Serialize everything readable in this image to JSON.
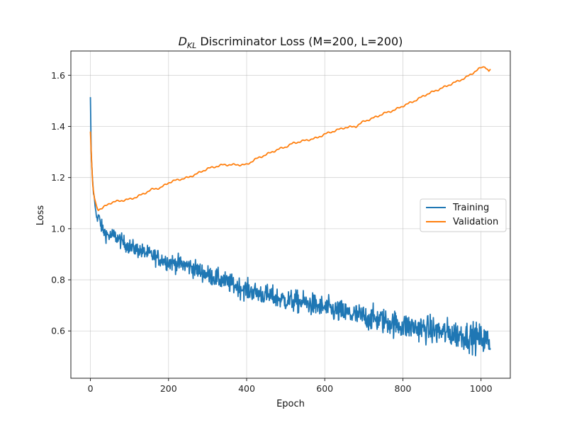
{
  "chart_data": {
    "type": "line",
    "title_prefix": "D",
    "title_subscript": "KL",
    "title_suffix": " Discriminator Loss (M=200, L=200)",
    "xlabel": "Epoch",
    "ylabel": "Loss",
    "xlim": [
      -50,
      1075
    ],
    "ylim": [
      0.415,
      1.695
    ],
    "x_ticks": [
      0,
      200,
      400,
      600,
      800,
      1000
    ],
    "y_ticks": [
      0.6,
      0.8,
      1.0,
      1.2,
      1.4,
      1.6
    ],
    "y_tick_labels": [
      "0.6",
      "0.8",
      "1.0",
      "1.2",
      "1.4",
      "1.6"
    ],
    "grid": true,
    "legend_position": "center-right",
    "series": [
      {
        "name": "Training",
        "color": "#1f77b4",
        "points": [
          [
            0,
            1.51
          ],
          [
            2,
            1.3
          ],
          [
            4,
            1.23
          ],
          [
            6,
            1.18
          ],
          [
            8,
            1.14
          ],
          [
            10,
            1.12
          ],
          [
            12,
            1.09
          ],
          [
            15,
            1.06
          ],
          [
            18,
            1.03
          ],
          [
            20,
            1.05
          ],
          [
            30,
            1.0
          ],
          [
            40,
            0.98
          ],
          [
            50,
            0.97
          ],
          [
            60,
            0.975
          ],
          [
            80,
            0.95
          ],
          [
            100,
            0.93
          ],
          [
            150,
            0.9
          ],
          [
            200,
            0.87
          ],
          [
            250,
            0.855
          ],
          [
            300,
            0.82
          ],
          [
            350,
            0.79
          ],
          [
            400,
            0.76
          ],
          [
            450,
            0.74
          ],
          [
            500,
            0.72
          ],
          [
            550,
            0.71
          ],
          [
            600,
            0.69
          ],
          [
            650,
            0.67
          ],
          [
            700,
            0.655
          ],
          [
            750,
            0.64
          ],
          [
            800,
            0.62
          ],
          [
            850,
            0.61
          ],
          [
            900,
            0.595
          ],
          [
            950,
            0.585
          ],
          [
            1000,
            0.57
          ],
          [
            1025,
            0.555
          ]
        ]
      },
      {
        "name": "Validation",
        "color": "#ff7f0e",
        "points": [
          [
            0,
            1.38
          ],
          [
            3,
            1.26
          ],
          [
            6,
            1.17
          ],
          [
            10,
            1.12
          ],
          [
            15,
            1.09
          ],
          [
            20,
            1.075
          ],
          [
            30,
            1.08
          ],
          [
            40,
            1.09
          ],
          [
            50,
            1.1
          ],
          [
            60,
            1.105
          ],
          [
            80,
            1.11
          ],
          [
            100,
            1.115
          ],
          [
            120,
            1.125
          ],
          [
            140,
            1.14
          ],
          [
            160,
            1.155
          ],
          [
            180,
            1.16
          ],
          [
            200,
            1.18
          ],
          [
            220,
            1.19
          ],
          [
            250,
            1.2
          ],
          [
            280,
            1.22
          ],
          [
            300,
            1.235
          ],
          [
            340,
            1.25
          ],
          [
            380,
            1.25
          ],
          [
            400,
            1.25
          ],
          [
            420,
            1.27
          ],
          [
            450,
            1.29
          ],
          [
            480,
            1.31
          ],
          [
            500,
            1.32
          ],
          [
            520,
            1.335
          ],
          [
            550,
            1.345
          ],
          [
            580,
            1.355
          ],
          [
            600,
            1.37
          ],
          [
            620,
            1.38
          ],
          [
            650,
            1.395
          ],
          [
            680,
            1.4
          ],
          [
            700,
            1.42
          ],
          [
            720,
            1.43
          ],
          [
            750,
            1.45
          ],
          [
            780,
            1.465
          ],
          [
            800,
            1.48
          ],
          [
            830,
            1.5
          ],
          [
            860,
            1.525
          ],
          [
            900,
            1.55
          ],
          [
            930,
            1.57
          ],
          [
            960,
            1.59
          ],
          [
            1000,
            1.63
          ],
          [
            1010,
            1.635
          ],
          [
            1020,
            1.615
          ],
          [
            1025,
            1.625
          ]
        ]
      }
    ]
  }
}
